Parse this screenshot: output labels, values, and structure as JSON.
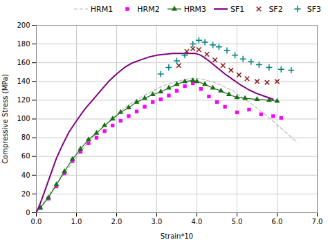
{
  "chart_data": {
    "type": "line",
    "xlabel": "Strain*10",
    "ylabel": "Compressive Stress (MPa)",
    "xlim": [
      0,
      7
    ],
    "ylim": [
      0,
      200
    ],
    "xticks": [
      0,
      1,
      2,
      3,
      4,
      5,
      6,
      7
    ],
    "yticks": [
      0,
      20,
      40,
      60,
      80,
      100,
      120,
      140,
      160,
      180,
      200
    ],
    "grid": true,
    "legend": "upper right",
    "series": [
      {
        "name": "HRM1",
        "color": "#b8b8b8",
        "marker": "none",
        "line_style": "dashed",
        "x": [
          0,
          0.2,
          0.5,
          0.8,
          1.1,
          1.4,
          1.7,
          2.0,
          2.3,
          2.6,
          2.9,
          3.2,
          3.5,
          3.8,
          4.1,
          4.5,
          4.9,
          5.3,
          5.7,
          6.1,
          6.5
        ],
        "values": [
          0,
          12,
          30,
          48,
          65,
          80,
          93,
          105,
          115,
          123,
          130,
          136,
          140,
          143,
          143,
          138,
          130,
          118,
          105,
          90,
          75
        ]
      },
      {
        "name": "HRM2",
        "color": "#ff00ff",
        "marker": "square",
        "line_style": "none",
        "x": [
          0.1,
          0.3,
          0.5,
          0.7,
          0.9,
          1.1,
          1.3,
          1.5,
          1.7,
          1.9,
          2.1,
          2.3,
          2.5,
          2.7,
          2.9,
          3.1,
          3.3,
          3.5,
          3.7,
          3.9,
          4.1,
          4.3,
          4.5,
          4.7,
          5.0,
          5.3,
          5.6,
          5.9,
          6.1
        ],
        "values": [
          5,
          15,
          28,
          42,
          55,
          65,
          74,
          80,
          87,
          93,
          98,
          103,
          108,
          113,
          118,
          121,
          125,
          130,
          135,
          138,
          132,
          124,
          118,
          113,
          107,
          110,
          105,
          103,
          101
        ]
      },
      {
        "name": "HRM3",
        "color": "#1a6e1a",
        "marker": "triangle",
        "line_style": "solid",
        "x": [
          0.1,
          0.3,
          0.5,
          0.7,
          0.9,
          1.1,
          1.3,
          1.5,
          1.7,
          1.9,
          2.1,
          2.3,
          2.5,
          2.7,
          2.9,
          3.1,
          3.3,
          3.5,
          3.7,
          3.9,
          4.0,
          4.2,
          4.4,
          4.6,
          4.8,
          5.0,
          5.2,
          5.5,
          5.8,
          6.0
        ],
        "values": [
          5,
          16,
          30,
          44,
          57,
          68,
          78,
          85,
          93,
          100,
          107,
          112,
          118,
          122,
          126,
          129,
          133,
          137,
          140,
          141,
          140,
          137,
          133,
          130,
          126,
          123,
          122,
          121,
          120,
          119
        ]
      },
      {
        "name": "SF1",
        "color": "#800080",
        "marker": "none",
        "line_style": "solid",
        "x": [
          0,
          0.08,
          0.15,
          0.25,
          0.35,
          0.5,
          0.65,
          0.8,
          1.0,
          1.2,
          1.4,
          1.6,
          1.8,
          2.0,
          2.2,
          2.4,
          2.6,
          2.8,
          3.0,
          3.2,
          3.4,
          3.6,
          3.8,
          3.95,
          4.1,
          4.3,
          4.5,
          4.7,
          4.9,
          5.1,
          5.3,
          5.5,
          5.7,
          5.9
        ],
        "values": [
          0,
          8,
          16,
          28,
          40,
          58,
          72,
          85,
          98,
          110,
          120,
          130,
          140,
          148,
          155,
          160,
          163,
          166,
          168,
          169,
          170,
          170,
          170,
          170,
          168,
          162,
          155,
          148,
          142,
          136,
          131,
          127,
          124,
          121
        ]
      },
      {
        "name": "SF2",
        "color": "#8b1a1a",
        "marker": "times",
        "line_style": "none",
        "x": [
          3.55,
          3.75,
          3.9,
          4.05,
          4.25,
          4.45,
          4.65,
          4.85,
          5.05,
          5.25,
          5.5,
          5.75,
          6.0
        ],
        "values": [
          157,
          172,
          175,
          174,
          169,
          163,
          157,
          152,
          147,
          143,
          140,
          139,
          140
        ]
      },
      {
        "name": "SF3",
        "color": "#008080",
        "marker": "plus",
        "line_style": "none",
        "x": [
          3.1,
          3.3,
          3.5,
          3.7,
          3.9,
          4.05,
          4.2,
          4.4,
          4.55,
          4.75,
          4.95,
          5.15,
          5.35,
          5.55,
          5.8,
          6.1,
          6.35
        ],
        "values": [
          148,
          155,
          162,
          168,
          180,
          184,
          182,
          179,
          177,
          173,
          168,
          164,
          161,
          158,
          155,
          153,
          152
        ]
      }
    ]
  }
}
